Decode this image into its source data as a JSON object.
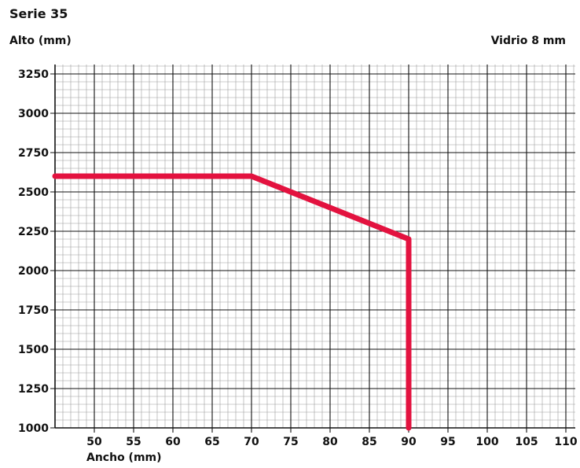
{
  "chart_data": {
    "type": "line",
    "title": "Serie 35",
    "ylabel": "Alto (mm)",
    "xlabel": "Ancho (mm)",
    "annotation": "Vidrio 8 mm",
    "xlim": [
      45,
      111
    ],
    "ylim": [
      1000,
      3300
    ],
    "x_ticks": [
      50,
      55,
      60,
      65,
      70,
      75,
      80,
      85,
      90,
      95,
      100,
      105,
      110
    ],
    "y_ticks": [
      1000,
      1250,
      1500,
      1750,
      2000,
      2250,
      2500,
      2750,
      3000,
      3250
    ],
    "grid": true,
    "line_color": "#e3123f",
    "series": [
      {
        "x": [
          45,
          70,
          90,
          90
        ],
        "y": [
          2600,
          2600,
          2200,
          1000
        ]
      }
    ]
  }
}
